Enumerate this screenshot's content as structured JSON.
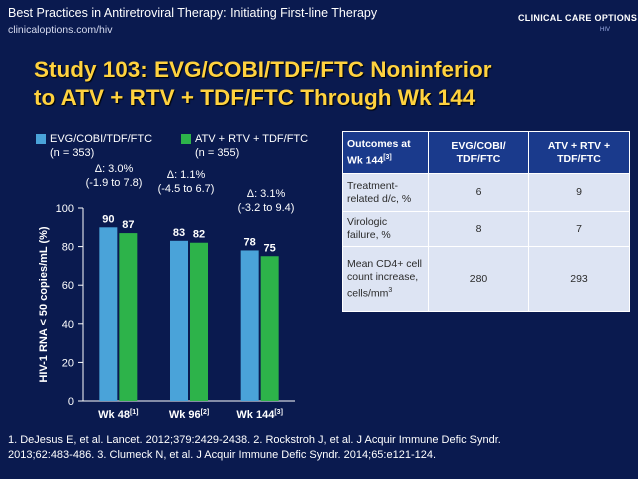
{
  "header": {
    "title": "Best Practices in Antiretroviral Therapy: Initiating First-line Therapy",
    "url": "clinicaloptions.com/hiv",
    "logo_text": "CLINICAL CARE OPTIONS",
    "logo_sub": "HIV"
  },
  "slide_title": {
    "line1": "Study 103: EVG/COBI/TDF/FTC Noninferior",
    "line2": "to ATV + RTV + TDF/FTC Through Wk 144"
  },
  "legend": [
    {
      "name": "EVG/COBI/TDF/FTC",
      "n": "(n = 353)",
      "color": "#4aa3d9"
    },
    {
      "name": "ATV + RTV + TDF/FTC",
      "n": "(n = 355)",
      "color": "#2db34a"
    }
  ],
  "chart_data": {
    "type": "bar",
    "ylabel": "HIV-1 RNA < 50 copies/mL (%)",
    "ylim": [
      0,
      100
    ],
    "yticks": [
      0,
      20,
      40,
      60,
      80,
      100
    ],
    "categories": [
      {
        "label": "Wk 48",
        "ref": "[1]"
      },
      {
        "label": "Wk 96",
        "ref": "[2]"
      },
      {
        "label": "Wk 144",
        "ref": "[3]"
      }
    ],
    "series": [
      {
        "name": "EVG/COBI/TDF/FTC",
        "values": [
          90,
          83,
          78
        ],
        "color": "#4aa3d9"
      },
      {
        "name": "ATV + RTV + TDF/FTC",
        "values": [
          87,
          82,
          75
        ],
        "color": "#2db34a"
      }
    ],
    "annotations": [
      {
        "delta": "Δ: 3.0%",
        "ci": "(-1.9 to 7.8)"
      },
      {
        "delta": "Δ: 1.1%",
        "ci": "(-4.5 to 6.7)"
      },
      {
        "delta": "Δ: 3.1%",
        "ci": "(-3.2 to 9.4)"
      }
    ]
  },
  "table": {
    "header_line1": "Outcomes at",
    "header_line2": "Wk 144",
    "header_ref": "[3]",
    "col1_line1": "EVG/COBI/",
    "col1_line2": "TDF/FTC",
    "col2_line1": "ATV + RTV +",
    "col2_line2": "TDF/FTC",
    "rows": [
      {
        "label1": "Treatment-",
        "label2": "related d/c, %",
        "v1": "6",
        "v2": "9"
      },
      {
        "label1": "Virologic",
        "label2": "failure, %",
        "v1": "8",
        "v2": "7"
      },
      {
        "label1": "Mean CD4+ cell count increase,",
        "label2": "cells/mm",
        "label_sup": "3",
        "v1": "280",
        "v2": "293"
      }
    ]
  },
  "footnote": {
    "line1": "1. DeJesus E, et al. Lancet. 2012;379:2429-2438. 2. Rockstroh J, et al. J Acquir Immune Defic Syndr.",
    "line2": "2013;62:483-486. 3. Clumeck N, et al. J Acquir Immune Defic Syndr. 2014;65:e121-124."
  }
}
